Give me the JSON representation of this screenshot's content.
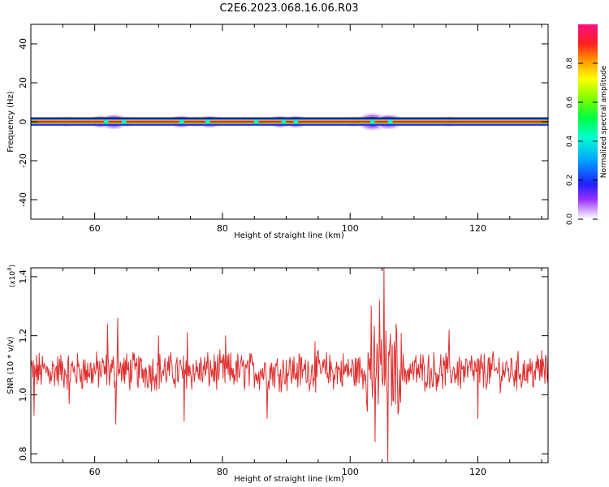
{
  "page": {
    "title": "C2E6.2023.068.16.06.R03"
  },
  "chart_data": [
    {
      "type": "heatmap",
      "xlabel": "Height of straight line (km)",
      "ylabel": "Frequency (Hz)",
      "xlim": [
        50,
        131
      ],
      "ylim": [
        -50,
        50
      ],
      "xticks": [
        60,
        80,
        100,
        120
      ],
      "yticks": [
        -40,
        -20,
        0,
        20,
        40
      ],
      "xtick_labels": [
        "60",
        "80",
        "100",
        "120"
      ],
      "ytick_labels": [
        "-40",
        "-20",
        "0",
        "20",
        "40"
      ],
      "band_center_hz": 0,
      "colorbar": {
        "label": "Normalized spectral amplitude",
        "range": [
          0,
          1
        ],
        "ticks": [
          0.0,
          0.2,
          0.4,
          0.6,
          0.8
        ],
        "tick_labels": [
          "0.0",
          "0.2",
          "0.4",
          "0.6",
          "0.8"
        ]
      },
      "spectral_blobs": [
        {
          "x": 51.5,
          "halfwidth_hz": 1.5,
          "strength": 0.5
        },
        {
          "x": 55.5,
          "halfwidth_hz": 2.0,
          "strength": 0.6
        },
        {
          "x": 58.5,
          "halfwidth_hz": 1.5,
          "strength": 0.4
        },
        {
          "x": 61.0,
          "halfwidth_hz": 2.5,
          "strength": 0.7
        },
        {
          "x": 63.0,
          "halfwidth_hz": 3.0,
          "strength": 0.8
        },
        {
          "x": 65.0,
          "halfwidth_hz": 2.0,
          "strength": 0.6
        },
        {
          "x": 73.5,
          "halfwidth_hz": 2.5,
          "strength": 0.7
        },
        {
          "x": 76.0,
          "halfwidth_hz": 2.0,
          "strength": 0.6
        },
        {
          "x": 78.0,
          "halfwidth_hz": 2.5,
          "strength": 0.7
        },
        {
          "x": 85.0,
          "halfwidth_hz": 1.5,
          "strength": 0.5
        },
        {
          "x": 89.0,
          "halfwidth_hz": 2.5,
          "strength": 0.6
        },
        {
          "x": 91.5,
          "halfwidth_hz": 2.5,
          "strength": 0.7
        },
        {
          "x": 97.0,
          "halfwidth_hz": 1.5,
          "strength": 0.4
        },
        {
          "x": 100.5,
          "halfwidth_hz": 2.0,
          "strength": 0.6
        },
        {
          "x": 103.5,
          "halfwidth_hz": 3.5,
          "strength": 0.9
        },
        {
          "x": 106.0,
          "halfwidth_hz": 3.0,
          "strength": 0.8
        },
        {
          "x": 110.0,
          "halfwidth_hz": 1.5,
          "strength": 0.5
        },
        {
          "x": 115.5,
          "halfwidth_hz": 2.0,
          "strength": 0.6
        },
        {
          "x": 120.5,
          "halfwidth_hz": 1.5,
          "strength": 0.5
        },
        {
          "x": 124.0,
          "halfwidth_hz": 1.5,
          "strength": 0.4
        },
        {
          "x": 128.5,
          "halfwidth_hz": 1.5,
          "strength": 0.4
        }
      ],
      "peak_markers": [
        61.8,
        64.6,
        73.6,
        77.7,
        85.3,
        89.6,
        91.5,
        103.5,
        106.3
      ]
    },
    {
      "type": "line",
      "xlabel": "Height of straight line (km)",
      "ylabel": "SNR (10 * v/v)",
      "y_multiplier_label": "(x10",
      "y_multiplier_exp": "4",
      "y_multiplier_close": ")",
      "xlim": [
        50,
        131
      ],
      "ylim": [
        0.77,
        1.43
      ],
      "xticks": [
        60,
        80,
        100,
        120
      ],
      "yticks": [
        0.8,
        1.0,
        1.2,
        1.4
      ],
      "xtick_labels": [
        "60",
        "80",
        "100",
        "120"
      ],
      "ytick_labels": [
        "0.8",
        "1.0",
        "1.2",
        "1.4"
      ],
      "color": "#e03030",
      "baseline": 1.08,
      "noise_amplitude": 0.055,
      "x_step_km": 0.1,
      "features": [
        {
          "x": 50.5,
          "y": 0.93
        },
        {
          "x": 56.0,
          "y": 0.97
        },
        {
          "x": 62.0,
          "y": 1.24
        },
        {
          "x": 63.3,
          "y": 0.9
        },
        {
          "x": 63.6,
          "y": 1.26
        },
        {
          "x": 70.0,
          "y": 1.2
        },
        {
          "x": 74.0,
          "y": 0.91
        },
        {
          "x": 74.5,
          "y": 1.21
        },
        {
          "x": 80.5,
          "y": 1.2
        },
        {
          "x": 87.0,
          "y": 0.92
        },
        {
          "x": 94.5,
          "y": 1.18
        },
        {
          "x": 103.3,
          "y": 1.3
        },
        {
          "x": 103.9,
          "y": 0.84
        },
        {
          "x": 104.6,
          "y": 1.32
        },
        {
          "x": 105.3,
          "y": 1.43
        },
        {
          "x": 105.9,
          "y": 0.77
        },
        {
          "x": 107.2,
          "y": 1.24
        },
        {
          "x": 115.5,
          "y": 1.22
        },
        {
          "x": 120.0,
          "y": 0.92
        },
        {
          "x": 130.0,
          "y": 1.15
        }
      ]
    }
  ]
}
